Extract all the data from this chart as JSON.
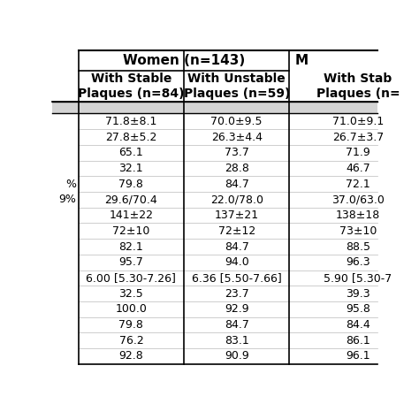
{
  "col1": [
    "71.8±8.1",
    "27.8±5.2",
    "65.1",
    "32.1",
    "79.8",
    "29.6/70.4",
    "141±22",
    "72±10",
    "82.1",
    "95.7",
    "6.00 [5.30-7.26]",
    "32.5",
    "100.0",
    "79.8",
    "76.2",
    "92.8"
  ],
  "col2": [
    "70.0±9.5",
    "26.3±4.4",
    "73.7",
    "28.8",
    "84.7",
    "22.0/78.0",
    "137±21",
    "72±12",
    "84.7",
    "94.0",
    "6.36 [5.50-7.66]",
    "23.7",
    "92.9",
    "84.7",
    "83.1",
    "90.9"
  ],
  "col3": [
    "71.0±9.1",
    "26.7±3.7",
    "71.9",
    "46.7",
    "72.1",
    "37.0/63.0",
    "138±18",
    "73±10",
    "88.5",
    "96.3",
    "5.90 [5.30-7",
    "39.3",
    "95.8",
    "84.4",
    "86.1",
    "96.1"
  ],
  "left_labels": [
    "",
    "",
    "",
    "",
    "%",
    "9%",
    "",
    "",
    "",
    "",
    "",
    "",
    "",
    "",
    "",
    ""
  ],
  "header1_text": "Women (n=143)",
  "header1_right": "M",
  "subheader1": "With Stable\nPlaques (n=84)",
  "subheader2": "With Unstable\nPlaques (n=59)",
  "subheader3": "With Stab\nPlaques (n=",
  "gray_color": "#d4d4d4",
  "white": "#ffffff",
  "black": "#000000",
  "font_size_header": 11,
  "font_size_sub": 10,
  "font_size_data": 9,
  "font_size_label": 9
}
